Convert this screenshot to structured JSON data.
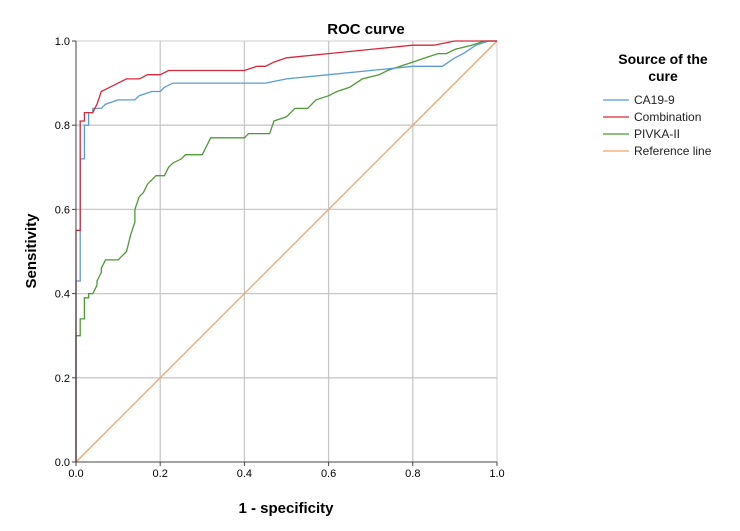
{
  "chart_data": {
    "type": "line",
    "title": "ROC curve",
    "xlabel": "1 - specificity",
    "ylabel": "Sensitivity",
    "xlim": [
      0,
      1
    ],
    "ylim": [
      0,
      1
    ],
    "grid": true,
    "xticks": [
      "0.0",
      "0.2",
      "0.4",
      "0.6",
      "0.8",
      "1.0"
    ],
    "yticks": [
      "0.0",
      "0.2",
      "0.4",
      "0.6",
      "0.8",
      "1.0"
    ],
    "legend": {
      "title_line1": "Source of the",
      "title_line2": "cure",
      "placement": "right"
    },
    "series": [
      {
        "name": "CA19-9",
        "color": "#5b9bd5",
        "points": [
          [
            0,
            0
          ],
          [
            0,
            0.43
          ],
          [
            0.01,
            0.43
          ],
          [
            0.01,
            0.72
          ],
          [
            0.02,
            0.72
          ],
          [
            0.02,
            0.8
          ],
          [
            0.03,
            0.8
          ],
          [
            0.03,
            0.83
          ],
          [
            0.04,
            0.83
          ],
          [
            0.04,
            0.84
          ],
          [
            0.06,
            0.84
          ],
          [
            0.07,
            0.85
          ],
          [
            0.1,
            0.86
          ],
          [
            0.14,
            0.86
          ],
          [
            0.15,
            0.87
          ],
          [
            0.18,
            0.88
          ],
          [
            0.2,
            0.88
          ],
          [
            0.21,
            0.89
          ],
          [
            0.23,
            0.9
          ],
          [
            0.27,
            0.9
          ],
          [
            0.45,
            0.9
          ],
          [
            0.5,
            0.91
          ],
          [
            0.6,
            0.92
          ],
          [
            0.7,
            0.93
          ],
          [
            0.8,
            0.94
          ],
          [
            0.87,
            0.94
          ],
          [
            0.9,
            0.96
          ],
          [
            0.92,
            0.97
          ],
          [
            0.95,
            0.99
          ],
          [
            0.98,
            1.0
          ],
          [
            1.0,
            1.0
          ]
        ]
      },
      {
        "name": "Combination",
        "color": "#d62839",
        "points": [
          [
            0,
            0
          ],
          [
            0,
            0.55
          ],
          [
            0.01,
            0.55
          ],
          [
            0.01,
            0.81
          ],
          [
            0.02,
            0.81
          ],
          [
            0.02,
            0.83
          ],
          [
            0.04,
            0.83
          ],
          [
            0.05,
            0.85
          ],
          [
            0.06,
            0.88
          ],
          [
            0.08,
            0.89
          ],
          [
            0.1,
            0.9
          ],
          [
            0.12,
            0.91
          ],
          [
            0.15,
            0.91
          ],
          [
            0.17,
            0.92
          ],
          [
            0.2,
            0.92
          ],
          [
            0.22,
            0.93
          ],
          [
            0.4,
            0.93
          ],
          [
            0.43,
            0.94
          ],
          [
            0.45,
            0.94
          ],
          [
            0.47,
            0.95
          ],
          [
            0.5,
            0.96
          ],
          [
            0.6,
            0.97
          ],
          [
            0.7,
            0.98
          ],
          [
            0.8,
            0.99
          ],
          [
            0.85,
            0.99
          ],
          [
            0.9,
            1.0
          ],
          [
            1.0,
            1.0
          ]
        ]
      },
      {
        "name": "PIVKA-II",
        "color": "#4d9a34",
        "points": [
          [
            0,
            0
          ],
          [
            0,
            0.3
          ],
          [
            0.01,
            0.3
          ],
          [
            0.01,
            0.34
          ],
          [
            0.02,
            0.34
          ],
          [
            0.02,
            0.39
          ],
          [
            0.03,
            0.39
          ],
          [
            0.03,
            0.4
          ],
          [
            0.04,
            0.4
          ],
          [
            0.05,
            0.42
          ],
          [
            0.05,
            0.43
          ],
          [
            0.06,
            0.45
          ],
          [
            0.06,
            0.46
          ],
          [
            0.07,
            0.48
          ],
          [
            0.1,
            0.48
          ],
          [
            0.11,
            0.49
          ],
          [
            0.12,
            0.5
          ],
          [
            0.13,
            0.54
          ],
          [
            0.14,
            0.57
          ],
          [
            0.14,
            0.6
          ],
          [
            0.15,
            0.63
          ],
          [
            0.16,
            0.64
          ],
          [
            0.17,
            0.66
          ],
          [
            0.19,
            0.68
          ],
          [
            0.21,
            0.68
          ],
          [
            0.22,
            0.7
          ],
          [
            0.23,
            0.71
          ],
          [
            0.25,
            0.72
          ],
          [
            0.26,
            0.73
          ],
          [
            0.3,
            0.73
          ],
          [
            0.31,
            0.75
          ],
          [
            0.32,
            0.77
          ],
          [
            0.4,
            0.77
          ],
          [
            0.41,
            0.78
          ],
          [
            0.46,
            0.78
          ],
          [
            0.47,
            0.81
          ],
          [
            0.5,
            0.82
          ],
          [
            0.52,
            0.84
          ],
          [
            0.55,
            0.84
          ],
          [
            0.57,
            0.86
          ],
          [
            0.6,
            0.87
          ],
          [
            0.62,
            0.88
          ],
          [
            0.65,
            0.89
          ],
          [
            0.68,
            0.91
          ],
          [
            0.72,
            0.92
          ],
          [
            0.74,
            0.93
          ],
          [
            0.77,
            0.94
          ],
          [
            0.8,
            0.95
          ],
          [
            0.83,
            0.96
          ],
          [
            0.86,
            0.97
          ],
          [
            0.88,
            0.97
          ],
          [
            0.9,
            0.98
          ],
          [
            0.94,
            0.99
          ],
          [
            0.97,
            1.0
          ],
          [
            1.0,
            1.0
          ]
        ]
      },
      {
        "name": "Reference line",
        "color": "#f4a261",
        "points": [
          [
            0,
            0
          ],
          [
            1,
            1
          ]
        ]
      }
    ]
  }
}
